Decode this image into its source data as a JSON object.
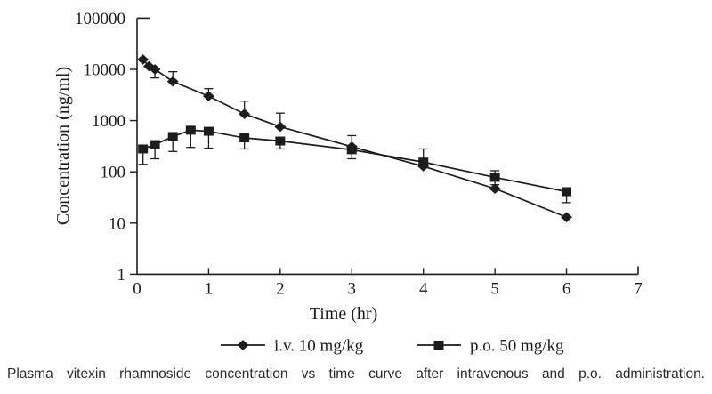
{
  "caption": "Plasma vitexin rhamnoside concentration vs time curve after intravenous and p.o. administration.",
  "colors": {
    "line": "#1c1c1c",
    "background": "#ffffff"
  },
  "chart_data": {
    "type": "line",
    "title": "",
    "xlabel": "Time (hr)",
    "ylabel": "Concentration (ng/ml)",
    "y_scale": "log",
    "xlim": [
      0,
      7
    ],
    "ylim": [
      1,
      100000
    ],
    "x_ticks": [
      0,
      1,
      2,
      3,
      4,
      5,
      6,
      7
    ],
    "y_ticks": [
      1,
      10,
      100,
      1000,
      10000,
      100000
    ],
    "grid": false,
    "legend_position": "bottom",
    "series": [
      {
        "name": "i.v. 10 mg/kg",
        "marker": "diamond",
        "color": "#1c1c1c",
        "points": [
          {
            "t": 0.083,
            "c": 15500
          },
          {
            "t": 0.167,
            "c": 11500
          },
          {
            "t": 0.25,
            "c": 10000,
            "err_down": 6800
          },
          {
            "t": 0.5,
            "c": 5800,
            "err_up": 9000
          },
          {
            "t": 1,
            "c": 3000,
            "err_up": 4200
          },
          {
            "t": 1.5,
            "c": 1350,
            "err_up": 2400
          },
          {
            "t": 2,
            "c": 760,
            "err_up": 1400
          },
          {
            "t": 3,
            "c": 310,
            "err_up": 510,
            "err_down": 180
          },
          {
            "t": 4,
            "c": 128
          },
          {
            "t": 5,
            "c": 47
          },
          {
            "t": 6,
            "c": 13
          }
        ]
      },
      {
        "name": "p.o. 50 mg/kg",
        "marker": "square",
        "color": "#1c1c1c",
        "points": [
          {
            "t": 0.083,
            "c": 280,
            "err_down": 140
          },
          {
            "t": 0.25,
            "c": 340,
            "err_down": 180
          },
          {
            "t": 0.5,
            "c": 490,
            "err_down": 250
          },
          {
            "t": 0.75,
            "c": 650,
            "err_down": 300
          },
          {
            "t": 1,
            "c": 620,
            "err_down": 290
          },
          {
            "t": 1.5,
            "c": 460,
            "err_down": 280
          },
          {
            "t": 2,
            "c": 400,
            "err_down": 280
          },
          {
            "t": 3,
            "c": 270
          },
          {
            "t": 4,
            "c": 155,
            "err_up": 280
          },
          {
            "t": 5,
            "c": 78,
            "err_up": 105,
            "err_down": 56
          },
          {
            "t": 6,
            "c": 41,
            "err_down": 25
          }
        ]
      }
    ]
  }
}
